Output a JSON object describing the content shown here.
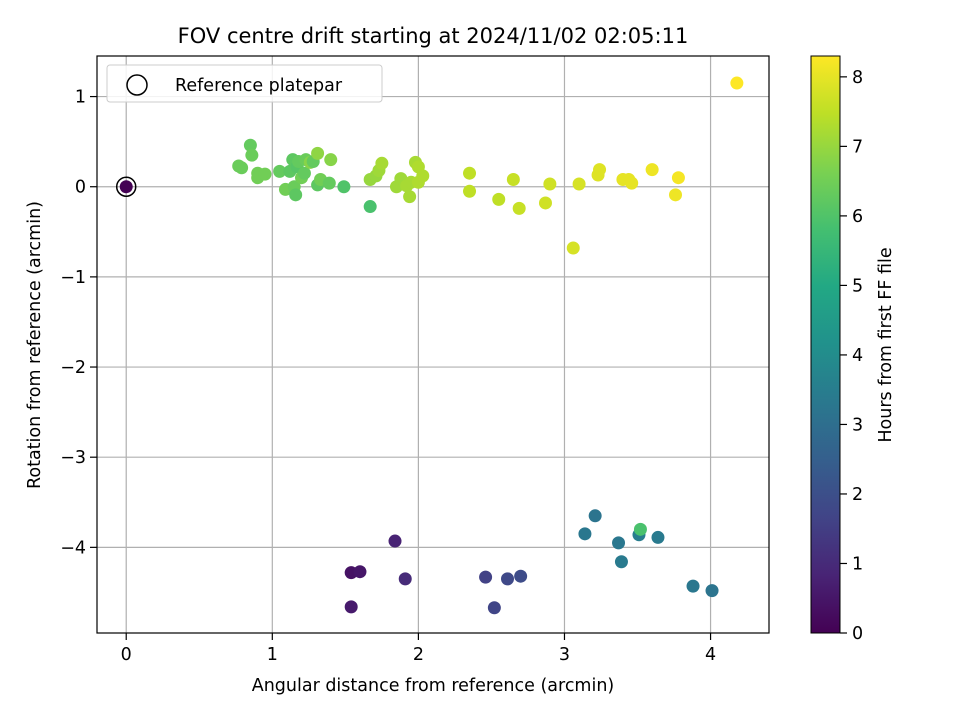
{
  "chart_data": {
    "type": "scatter",
    "title": "FOV centre drift starting at 2024/11/02 02:05:11",
    "xlabel": "Angular distance from reference (arcmin)",
    "ylabel": "Rotation from reference (arcmin)",
    "xlim": [
      -0.2,
      4.4
    ],
    "ylim": [
      -4.95,
      1.45
    ],
    "xticks": [
      0,
      1,
      2,
      3,
      4
    ],
    "xtick_labels": [
      "0",
      "1",
      "2",
      "3",
      "4"
    ],
    "yticks": [
      1,
      0,
      -1,
      -2,
      -3,
      -4
    ],
    "ytick_labels": [
      "1",
      "0",
      "−1",
      "−2",
      "−3",
      "−4"
    ],
    "grid": true,
    "legend": {
      "placement": "upper-left",
      "entries": [
        "Reference platepar"
      ]
    },
    "reference_point": {
      "x": 0,
      "y": 0,
      "label": "Reference platepar"
    },
    "colorbar": {
      "label": "Hours from first FF file",
      "min": 0,
      "max": 8.3,
      "ticks": [
        0,
        1,
        2,
        3,
        4,
        5,
        6,
        7,
        8
      ],
      "tick_labels": [
        "0",
        "1",
        "2",
        "3",
        "4",
        "5",
        "6",
        "7",
        "8"
      ],
      "colormap": "viridis"
    },
    "points": [
      {
        "x": 0.0,
        "y": 0.0,
        "t": 0.0
      },
      {
        "x": 1.54,
        "y": -4.28,
        "t": 0.4
      },
      {
        "x": 1.6,
        "y": -4.27,
        "t": 0.5
      },
      {
        "x": 1.54,
        "y": -4.66,
        "t": 0.6
      },
      {
        "x": 1.84,
        "y": -3.93,
        "t": 0.8
      },
      {
        "x": 1.91,
        "y": -4.35,
        "t": 1.0
      },
      {
        "x": 2.46,
        "y": -4.33,
        "t": 1.6
      },
      {
        "x": 2.52,
        "y": -4.67,
        "t": 1.7
      },
      {
        "x": 2.61,
        "y": -4.35,
        "t": 1.8
      },
      {
        "x": 2.7,
        "y": -4.32,
        "t": 1.9
      },
      {
        "x": 3.14,
        "y": -3.85,
        "t": 3.3
      },
      {
        "x": 3.21,
        "y": -3.65,
        "t": 3.2
      },
      {
        "x": 3.37,
        "y": -3.95,
        "t": 3.3
      },
      {
        "x": 3.39,
        "y": -4.16,
        "t": 3.4
      },
      {
        "x": 3.51,
        "y": -3.86,
        "t": 3.5
      },
      {
        "x": 3.64,
        "y": -3.89,
        "t": 3.4
      },
      {
        "x": 3.88,
        "y": -4.43,
        "t": 3.3
      },
      {
        "x": 4.01,
        "y": -4.48,
        "t": 3.2
      },
      {
        "x": 3.52,
        "y": -3.8,
        "t": 5.9
      },
      {
        "x": 0.77,
        "y": 0.23,
        "t": 6.4
      },
      {
        "x": 0.79,
        "y": 0.21,
        "t": 6.4
      },
      {
        "x": 0.85,
        "y": 0.46,
        "t": 6.3
      },
      {
        "x": 0.86,
        "y": 0.35,
        "t": 6.4
      },
      {
        "x": 0.9,
        "y": 0.15,
        "t": 6.5
      },
      {
        "x": 0.9,
        "y": 0.1,
        "t": 6.5
      },
      {
        "x": 0.95,
        "y": 0.14,
        "t": 6.5
      },
      {
        "x": 1.05,
        "y": 0.17,
        "t": 6.3
      },
      {
        "x": 1.09,
        "y": -0.03,
        "t": 6.5
      },
      {
        "x": 1.12,
        "y": 0.17,
        "t": 6.2
      },
      {
        "x": 1.14,
        "y": 0.3,
        "t": 6.2
      },
      {
        "x": 1.15,
        "y": 0.0,
        "t": 6.4
      },
      {
        "x": 1.16,
        "y": -0.09,
        "t": 6.2
      },
      {
        "x": 1.17,
        "y": 0.22,
        "t": 6.1
      },
      {
        "x": 1.18,
        "y": 0.28,
        "t": 6.3
      },
      {
        "x": 1.2,
        "y": 0.1,
        "t": 6.5
      },
      {
        "x": 1.22,
        "y": 0.15,
        "t": 6.3
      },
      {
        "x": 1.23,
        "y": 0.3,
        "t": 6.4
      },
      {
        "x": 1.26,
        "y": 0.27,
        "t": 6.8
      },
      {
        "x": 1.28,
        "y": 0.28,
        "t": 6.3
      },
      {
        "x": 1.31,
        "y": 0.37,
        "t": 6.9
      },
      {
        "x": 1.31,
        "y": 0.02,
        "t": 6.2
      },
      {
        "x": 1.33,
        "y": 0.08,
        "t": 6.5
      },
      {
        "x": 1.39,
        "y": 0.04,
        "t": 6.3
      },
      {
        "x": 1.4,
        "y": 0.3,
        "t": 6.8
      },
      {
        "x": 1.49,
        "y": 0.0,
        "t": 6.0
      },
      {
        "x": 1.67,
        "y": 0.08,
        "t": 7.0
      },
      {
        "x": 1.67,
        "y": -0.22,
        "t": 5.9
      },
      {
        "x": 1.71,
        "y": 0.12,
        "t": 7.0
      },
      {
        "x": 1.73,
        "y": 0.18,
        "t": 7.1
      },
      {
        "x": 1.75,
        "y": 0.26,
        "t": 7.2
      },
      {
        "x": 1.85,
        "y": 0.0,
        "t": 7.1
      },
      {
        "x": 1.88,
        "y": 0.09,
        "t": 7.1
      },
      {
        "x": 1.92,
        "y": 0.01,
        "t": 7.2
      },
      {
        "x": 1.94,
        "y": -0.11,
        "t": 7.2
      },
      {
        "x": 1.95,
        "y": 0.05,
        "t": 7.2
      },
      {
        "x": 1.98,
        "y": 0.27,
        "t": 7.2
      },
      {
        "x": 2.0,
        "y": 0.22,
        "t": 7.3
      },
      {
        "x": 2.0,
        "y": 0.05,
        "t": 7.3
      },
      {
        "x": 2.03,
        "y": 0.12,
        "t": 7.3
      },
      {
        "x": 2.35,
        "y": 0.15,
        "t": 7.5
      },
      {
        "x": 2.35,
        "y": -0.05,
        "t": 7.5
      },
      {
        "x": 2.55,
        "y": -0.14,
        "t": 7.5
      },
      {
        "x": 2.65,
        "y": 0.08,
        "t": 7.6
      },
      {
        "x": 2.69,
        "y": -0.24,
        "t": 7.6
      },
      {
        "x": 2.87,
        "y": -0.18,
        "t": 7.7
      },
      {
        "x": 2.9,
        "y": 0.03,
        "t": 7.7
      },
      {
        "x": 3.06,
        "y": -0.68,
        "t": 7.8
      },
      {
        "x": 3.1,
        "y": 0.03,
        "t": 7.8
      },
      {
        "x": 3.23,
        "y": 0.13,
        "t": 7.9
      },
      {
        "x": 3.24,
        "y": 0.19,
        "t": 7.9
      },
      {
        "x": 3.4,
        "y": 0.08,
        "t": 8.0
      },
      {
        "x": 3.44,
        "y": 0.08,
        "t": 8.0
      },
      {
        "x": 3.46,
        "y": 0.04,
        "t": 8.0
      },
      {
        "x": 3.6,
        "y": 0.19,
        "t": 8.1
      },
      {
        "x": 3.76,
        "y": -0.09,
        "t": 8.1
      },
      {
        "x": 3.78,
        "y": 0.1,
        "t": 8.2
      },
      {
        "x": 4.18,
        "y": 1.15,
        "t": 8.3
      }
    ]
  }
}
